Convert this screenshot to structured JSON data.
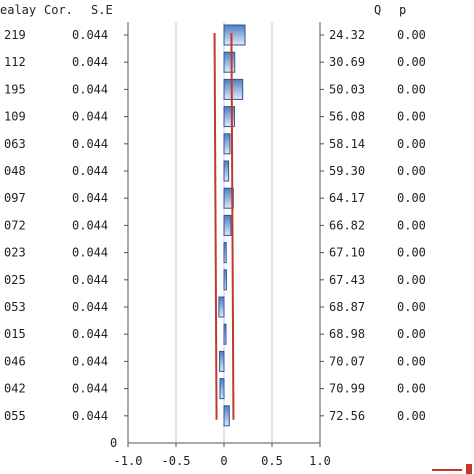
{
  "chart_data": {
    "type": "bar",
    "orientation": "horizontal",
    "headers": {
      "lag": "ealay",
      "cor": "Cor.",
      "se": "S.E",
      "q": "Q",
      "p": "p"
    },
    "rows": [
      {
        "lag_text": "219",
        "value": 0.219,
        "se": "0.044",
        "q": "24.32",
        "p": "0.00"
      },
      {
        "lag_text": "112",
        "value": 0.112,
        "se": "0.044",
        "q": "30.69",
        "p": "0.00"
      },
      {
        "lag_text": "195",
        "value": 0.195,
        "se": "0.044",
        "q": "50.03",
        "p": "0.00"
      },
      {
        "lag_text": "109",
        "value": 0.109,
        "se": "0.044",
        "q": "56.08",
        "p": "0.00"
      },
      {
        "lag_text": "063",
        "value": 0.063,
        "se": "0.044",
        "q": "58.14",
        "p": "0.00"
      },
      {
        "lag_text": "048",
        "value": 0.048,
        "se": "0.044",
        "q": "59.30",
        "p": "0.00"
      },
      {
        "lag_text": "097",
        "value": 0.097,
        "se": "0.044",
        "q": "64.17",
        "p": "0.00"
      },
      {
        "lag_text": "072",
        "value": 0.072,
        "se": "0.044",
        "q": "66.82",
        "p": "0.00"
      },
      {
        "lag_text": "023",
        "value": 0.023,
        "se": "0.044",
        "q": "67.10",
        "p": "0.00"
      },
      {
        "lag_text": "025",
        "value": 0.025,
        "se": "0.044",
        "q": "67.43",
        "p": "0.00"
      },
      {
        "lag_text": "053",
        "value": -0.053,
        "se": "0.044",
        "q": "68.87",
        "p": "0.00"
      },
      {
        "lag_text": "015",
        "value": 0.015,
        "se": "0.044",
        "q": "68.98",
        "p": "0.00"
      },
      {
        "lag_text": "046",
        "value": -0.046,
        "se": "0.044",
        "q": "70.07",
        "p": "0.00"
      },
      {
        "lag_text": "042",
        "value": -0.042,
        "se": "0.044",
        "q": "70.99",
        "p": "0.00"
      },
      {
        "lag_text": "055",
        "value": 0.055,
        "se": "0.044",
        "q": "72.56",
        "p": "0.00"
      }
    ],
    "x_ticks": [
      "-1.0",
      "-0.5",
      "0",
      "0.5",
      "1.0"
    ],
    "xlim": [
      -1.0,
      1.0
    ],
    "y_origin_label": "0",
    "confidence_bound": 0.088,
    "grid": "vertical",
    "colors": {
      "bar_fill_top": "#4f7fc0",
      "bar_fill_bottom": "#dfe9f7",
      "bar_stroke": "#2e5597",
      "bound_line": "#c0392b",
      "grid": "#cccccc",
      "axis": "#555555"
    }
  }
}
